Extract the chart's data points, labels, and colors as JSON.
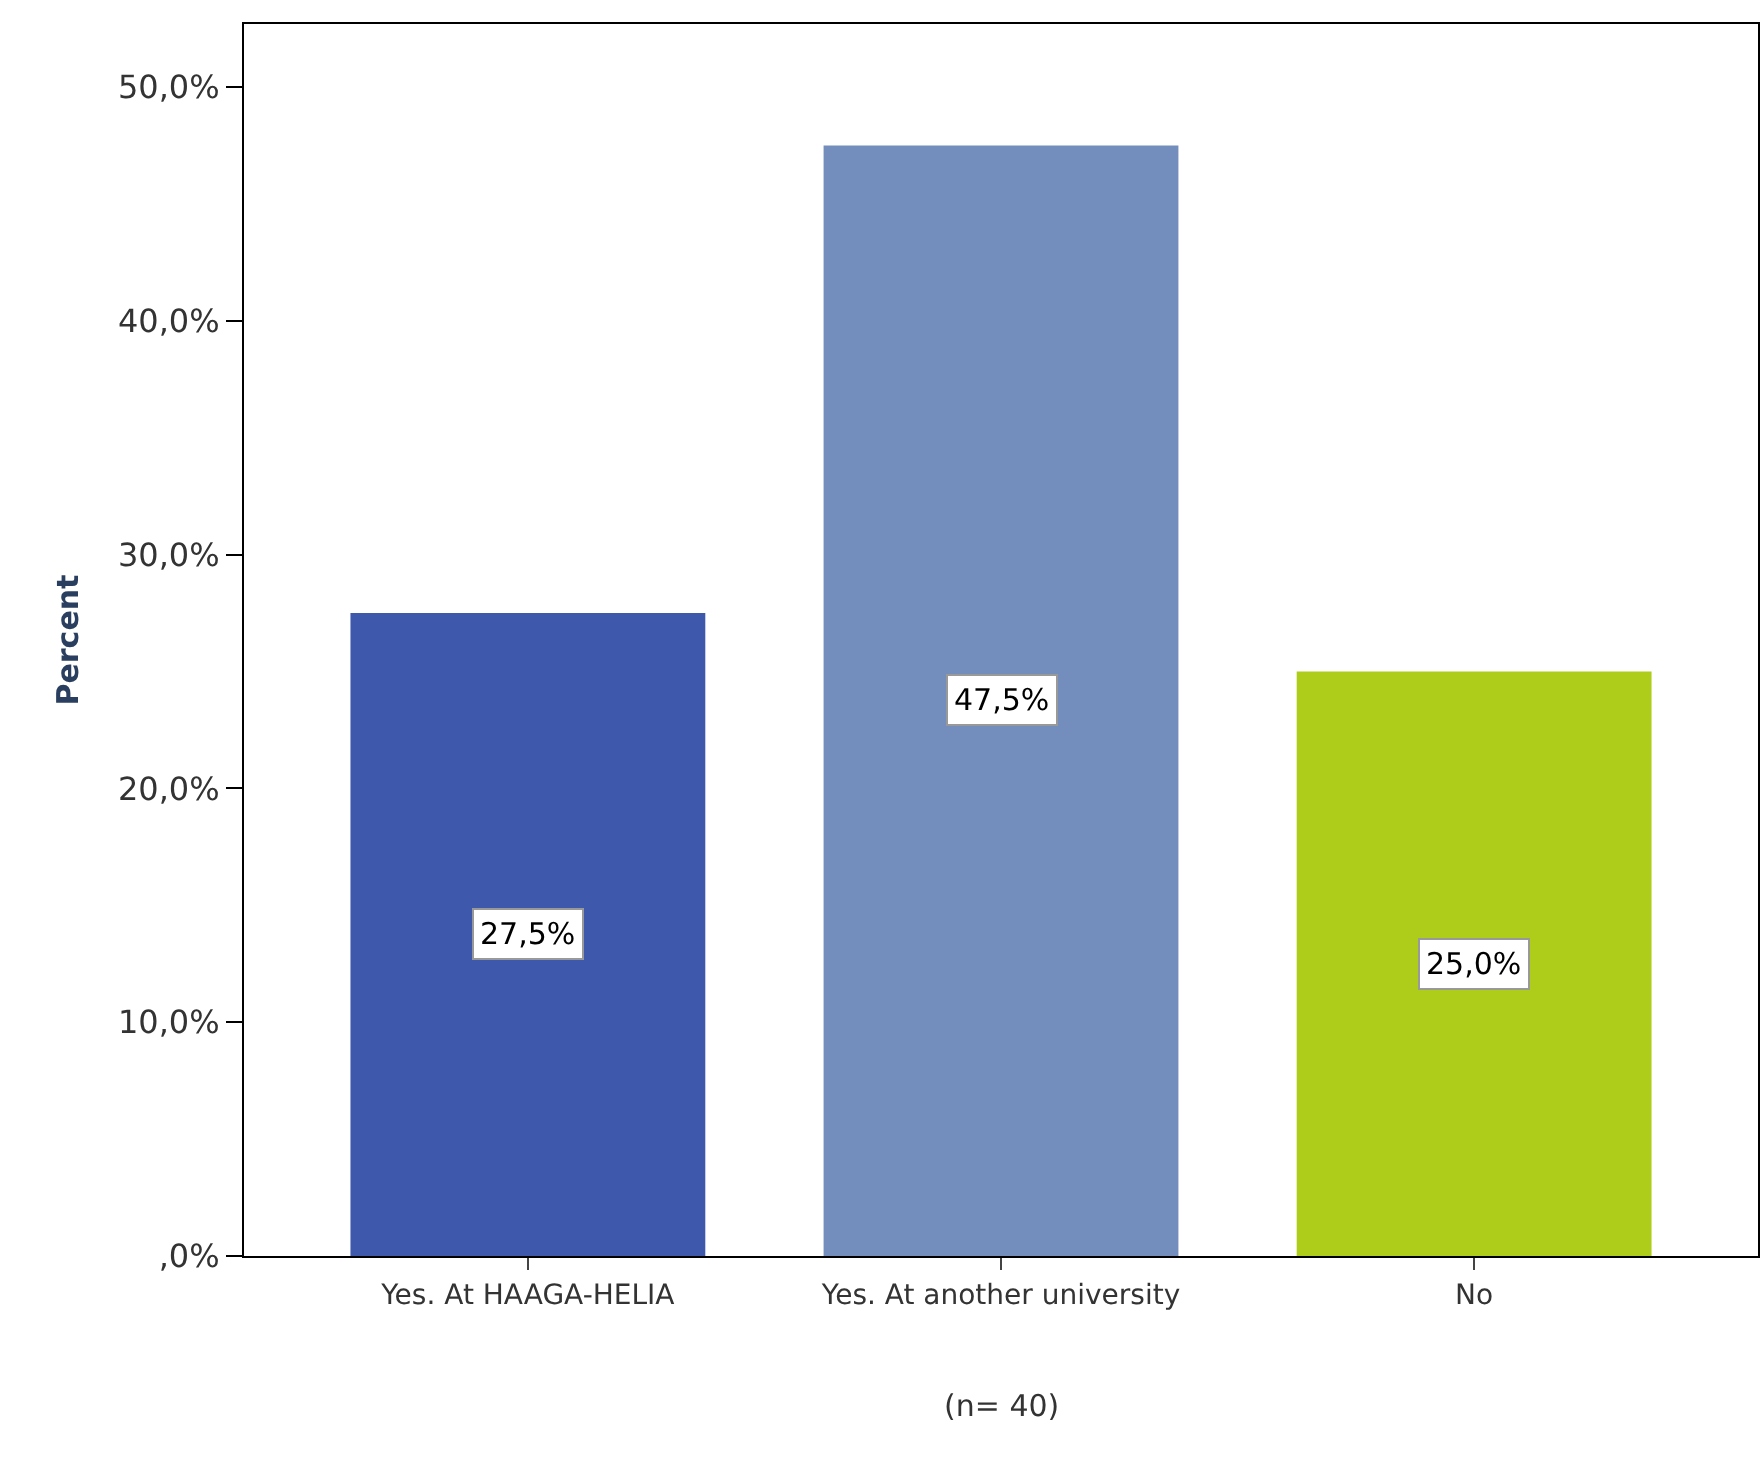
{
  "chart_data": {
    "type": "bar",
    "ylabel": "Percent",
    "categories": [
      "Yes. At HAAGA-HELIA",
      "Yes. At another university",
      "No"
    ],
    "values": [
      27.5,
      47.5,
      25.0
    ],
    "colors": [
      "#3e58ac",
      "#738dbd",
      "#aecd1b"
    ],
    "value_labels": [
      "27,5%",
      "47,5%",
      "25,0%"
    ],
    "ylim": [
      0,
      52.7
    ],
    "yticks": [
      {
        "value": 0,
        "label": ",0%"
      },
      {
        "value": 10,
        "label": "10,0%"
      },
      {
        "value": 20,
        "label": "20,0%"
      },
      {
        "value": 30,
        "label": "30,0%"
      },
      {
        "value": 40,
        "label": "40,0%"
      },
      {
        "value": 50,
        "label": "50,0%"
      }
    ],
    "annotations": [
      "(n= 40)"
    ]
  }
}
